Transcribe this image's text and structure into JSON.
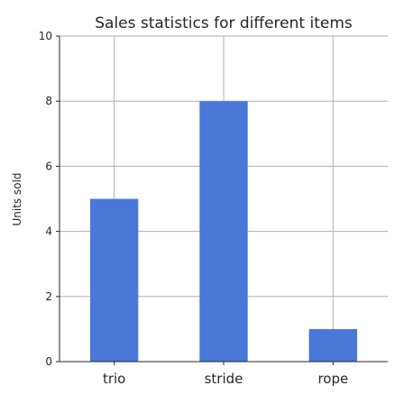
{
  "chart_data": {
    "type": "bar",
    "title": "Sales statistics for different items",
    "xlabel": "",
    "ylabel": "Units sold",
    "categories": [
      "trio",
      "stride",
      "rope"
    ],
    "values": [
      5,
      8,
      1
    ],
    "ylim": [
      0,
      10
    ],
    "yticks": [
      0,
      2,
      4,
      6,
      8,
      10
    ],
    "grid": true,
    "bar_color": "#4a78d9"
  }
}
